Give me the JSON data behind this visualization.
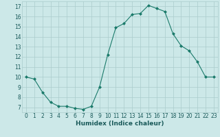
{
  "x": [
    0,
    1,
    2,
    3,
    4,
    5,
    6,
    7,
    8,
    9,
    10,
    11,
    12,
    13,
    14,
    15,
    16,
    17,
    18,
    19,
    20,
    21,
    22,
    23
  ],
  "y": [
    10,
    9.8,
    8.5,
    7.5,
    7.1,
    7.1,
    6.9,
    6.8,
    7.1,
    9.0,
    12.2,
    14.9,
    15.3,
    16.2,
    16.3,
    17.1,
    16.8,
    16.5,
    14.3,
    13.1,
    12.6,
    11.5,
    10.0,
    10.0
  ],
  "line_color": "#1a7a6a",
  "marker": "D",
  "marker_size": 2.0,
  "bg_color": "#cce8e8",
  "grid_color": "#aacccc",
  "xlabel": "Humidex (Indice chaleur)",
  "xlim": [
    -0.5,
    23.5
  ],
  "ylim": [
    6.5,
    17.5
  ],
  "yticks": [
    7,
    8,
    9,
    10,
    11,
    12,
    13,
    14,
    15,
    16,
    17
  ],
  "xticks": [
    0,
    1,
    2,
    3,
    4,
    5,
    6,
    7,
    8,
    9,
    10,
    11,
    12,
    13,
    14,
    15,
    16,
    17,
    18,
    19,
    20,
    21,
    22,
    23
  ],
  "xtick_labels": [
    "0",
    "1",
    "2",
    "3",
    "4",
    "5",
    "6",
    "7",
    "8",
    "9",
    "10",
    "11",
    "12",
    "13",
    "14",
    "15",
    "16",
    "17",
    "18",
    "19",
    "20",
    "21",
    "22",
    "23"
  ],
  "tick_fontsize": 5.5,
  "xlabel_fontsize": 6.5,
  "linewidth": 0.8
}
